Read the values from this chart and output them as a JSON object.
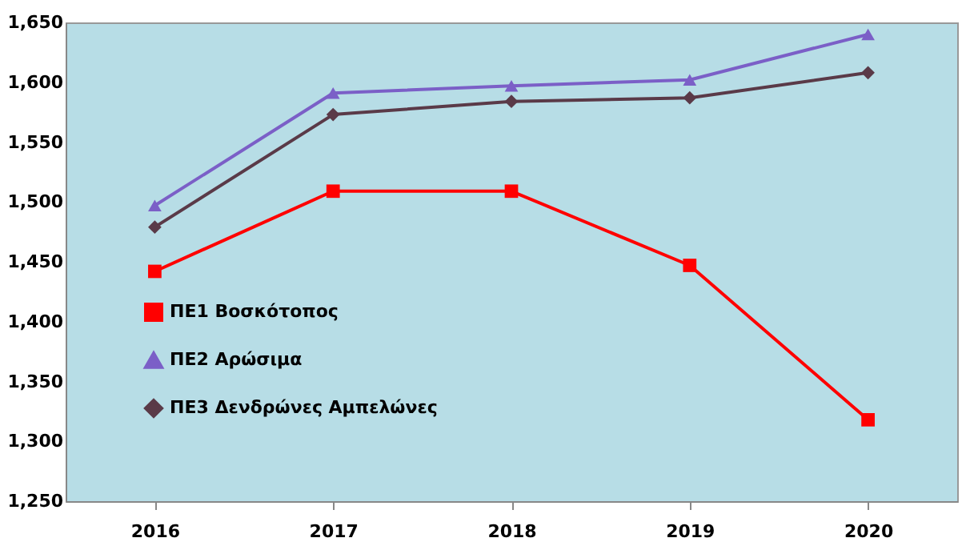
{
  "chart_data": {
    "type": "line",
    "categories": [
      "2016",
      "2017",
      "2018",
      "2019",
      "2020"
    ],
    "series": [
      {
        "name": "ΠΕ1 Βοσκότοπος",
        "color": "#ff0000",
        "marker": "square",
        "values": [
          1442,
          1509,
          1509,
          1447,
          1318
        ]
      },
      {
        "name": "ΠΕ2 Αρώσιμα",
        "color": "#7b5fc7",
        "marker": "triangle",
        "values": [
          1497,
          1591,
          1597,
          1602,
          1640
        ]
      },
      {
        "name": "ΠΕ3 Δενδρώνες Αμπελώνες",
        "color": "#5a3a48",
        "marker": "diamond",
        "values": [
          1479,
          1573,
          1584,
          1587,
          1608
        ]
      }
    ],
    "ylim": [
      1250,
      1650
    ],
    "yticks": [
      {
        "value": 1250,
        "label": "1,250"
      },
      {
        "value": 1300,
        "label": "1,300"
      },
      {
        "value": 1350,
        "label": "1,350"
      },
      {
        "value": 1400,
        "label": "1,400"
      },
      {
        "value": 1450,
        "label": "1,450"
      },
      {
        "value": 1500,
        "label": "1,500"
      },
      {
        "value": 1550,
        "label": "1,550"
      },
      {
        "value": 1600,
        "label": "1,600"
      },
      {
        "value": 1650,
        "label": "1,650"
      }
    ],
    "grid": false,
    "legend": "bottom left",
    "line_style": "solid"
  }
}
